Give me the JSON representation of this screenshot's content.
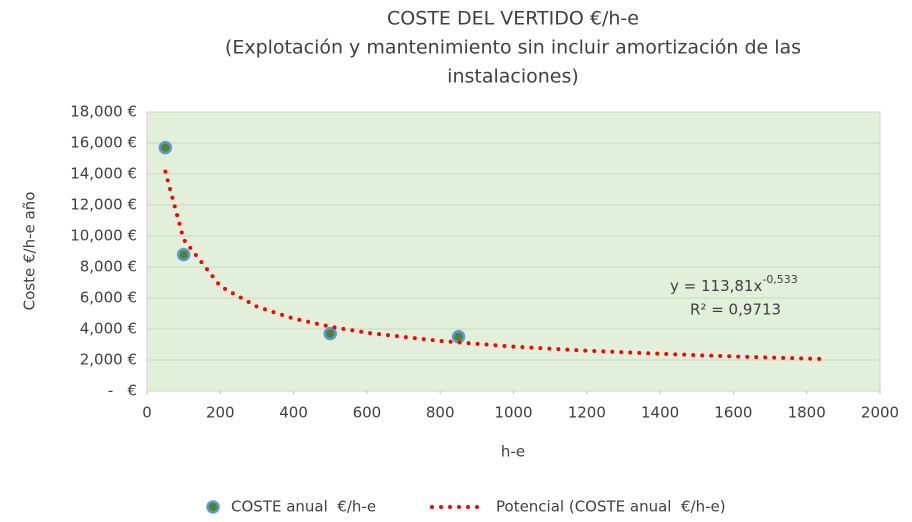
{
  "chart_data": {
    "type": "scatter",
    "title": "COSTE DEL VERTIDO €/h-e",
    "subtitle": [
      "(Explotación y mantenimiento sin incluir amortización de las",
      "instalaciones)"
    ],
    "xlabel": "h-e",
    "ylabel": "Coste €/h-e año",
    "xlim": [
      0,
      2000
    ],
    "xticks": [
      0,
      200,
      400,
      600,
      800,
      1000,
      1200,
      1400,
      1600,
      1800,
      2000
    ],
    "ylim": [
      0,
      18000
    ],
    "yticks": [
      {
        "value": 0,
        "label": "-   €"
      },
      {
        "value": 2000,
        "label": "2,000 €"
      },
      {
        "value": 4000,
        "label": "4,000 €"
      },
      {
        "value": 6000,
        "label": "6,000 €"
      },
      {
        "value": 8000,
        "label": "8,000 €"
      },
      {
        "value": 10000,
        "label": "10,000 €"
      },
      {
        "value": 12000,
        "label": "12,000 €"
      },
      {
        "value": 14000,
        "label": "14,000 €"
      },
      {
        "value": 16000,
        "label": "16,000 €"
      },
      {
        "value": 18000,
        "label": "18,000 €"
      }
    ],
    "grid": true,
    "legend": "bottom",
    "series": [
      {
        "name": "COSTE anual  €/h-e",
        "color": "#548235",
        "x": [
          50,
          100,
          500,
          850
        ],
        "values": [
          15700,
          8800,
          3700,
          3500
        ]
      },
      {
        "name": "Potencial (COSTE anual  €/h-e)",
        "color": "#ff0000",
        "style": "dotted",
        "x": [
          50,
          100,
          200,
          300,
          400,
          500,
          600,
          800,
          1000,
          1200,
          1400,
          1600,
          1850
        ],
        "values": [
          14150,
          9780,
          6760,
          5440,
          4670,
          4150,
          3760,
          3230,
          2860,
          2600,
          2400,
          2230,
          2060
        ]
      }
    ],
    "annotations": [
      "y = 113,81x",
      "-0,533",
      "R² = 0,9713"
    ]
  }
}
